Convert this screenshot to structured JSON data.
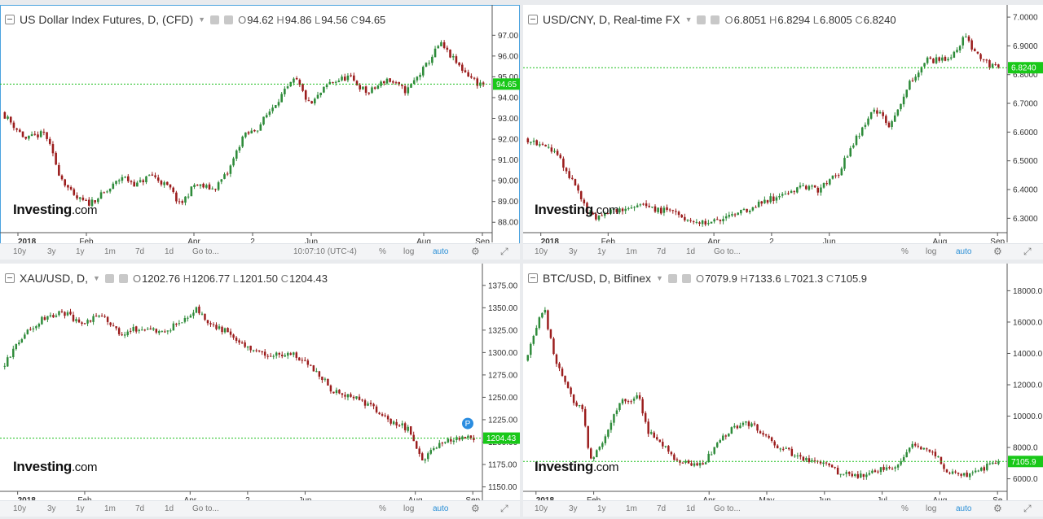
{
  "charts": [
    {
      "id": "dxy",
      "title": "US Dollar Index Futures, D, (CFD)",
      "ohlc": {
        "o": "94.62",
        "h": "94.86",
        "l": "94.56",
        "c": "94.65"
      },
      "logo": "Investing",
      "logo_suffix": ".com",
      "last_price_label": "94.65",
      "y_ticks": [
        "97.00",
        "96.00",
        "95.00",
        "94.00",
        "93.00",
        "92.00",
        "91.00",
        "90.00",
        "89.00",
        "88.00"
      ],
      "x_ticks": [
        "2018",
        "Feb",
        "Apr",
        "2",
        "Jun",
        "Aug",
        "Sep"
      ],
      "toolbar": {
        "ranges": [
          "10y",
          "3y",
          "1y",
          "1m",
          "7d",
          "1d"
        ],
        "goto": "Go to...",
        "time": "10:07:10 (UTC-4)",
        "pct": "%",
        "log": "log",
        "auto": "auto"
      }
    },
    {
      "id": "usdcny",
      "title": "USD/CNY, D, Real-time FX",
      "ohlc": {
        "o": "6.8051",
        "h": "6.8294",
        "l": "6.8005",
        "c": "6.8240"
      },
      "logo": "Investing",
      "logo_suffix": ".com",
      "last_price_label": "6.8240",
      "y_ticks": [
        "7.0000",
        "6.9000",
        "6.8000",
        "6.7000",
        "6.6000",
        "6.5000",
        "6.4000",
        "6.3000"
      ],
      "x_ticks": [
        "2018",
        "Feb",
        "Apr",
        "2",
        "Jun",
        "Aug",
        "Sep"
      ],
      "toolbar": {
        "ranges": [
          "10y",
          "3y",
          "1y",
          "1m",
          "7d",
          "1d"
        ],
        "goto": "Go to...",
        "pct": "%",
        "log": "log",
        "auto": "auto"
      }
    },
    {
      "id": "xauusd",
      "title": "XAU/USD, D,",
      "ohlc": {
        "o": "1202.76",
        "h": "1206.77",
        "l": "1201.50",
        "c": "1204.43"
      },
      "logo": "Investing",
      "logo_suffix": ".com",
      "last_price_label": "1204.43",
      "marker": "P",
      "y_ticks": [
        "1375.00",
        "1350.00",
        "1325.00",
        "1300.00",
        "1275.00",
        "1250.00",
        "1225.00",
        "1200.00",
        "1175.00",
        "1150.00"
      ],
      "x_ticks": [
        "2018",
        "Feb",
        "Apr",
        "2",
        "Jun",
        "Aug",
        "Sep"
      ],
      "toolbar": {
        "ranges": [
          "10y",
          "3y",
          "1y",
          "1m",
          "7d",
          "1d"
        ],
        "goto": "Go to...",
        "pct": "%",
        "log": "log",
        "auto": "auto"
      }
    },
    {
      "id": "btcusd",
      "title": "BTC/USD, D, Bitfinex",
      "ohlc": {
        "o": "7079.9",
        "h": "7133.6",
        "l": "7021.3",
        "c": "7105.9"
      },
      "logo": "Investing",
      "logo_suffix": ".com",
      "last_price_label": "7105.9",
      "y_ticks": [
        "18000.0",
        "16000.0",
        "14000.0",
        "12000.0",
        "10000.0",
        "8000.0",
        "6000.0"
      ],
      "x_ticks": [
        "2018",
        "Feb",
        "Apr",
        "May",
        "Jun",
        "Jul",
        "Aug",
        "Se"
      ],
      "toolbar": {
        "ranges": [
          "10y",
          "3y",
          "1y",
          "1m",
          "7d",
          "1d"
        ],
        "goto": "Go to...",
        "pct": "%",
        "log": "log",
        "auto": "auto"
      }
    }
  ],
  "chart_data": [
    {
      "type": "candlestick",
      "title": "US Dollar Index Futures, D, (CFD)",
      "ylim": [
        87.5,
        97.6
      ],
      "last": 94.65,
      "x_tick_pos": [
        0.03,
        0.17,
        0.39,
        0.51,
        0.63,
        0.86,
        0.98
      ],
      "path": [
        [
          0,
          93.3
        ],
        [
          0.05,
          92.0
        ],
        [
          0.09,
          92.3
        ],
        [
          0.12,
          90.3
        ],
        [
          0.15,
          89.2
        ],
        [
          0.18,
          88.9
        ],
        [
          0.22,
          89.5
        ],
        [
          0.25,
          90.2
        ],
        [
          0.28,
          89.8
        ],
        [
          0.31,
          90.3
        ],
        [
          0.35,
          89.6
        ],
        [
          0.37,
          88.8
        ],
        [
          0.4,
          89.8
        ],
        [
          0.44,
          89.6
        ],
        [
          0.47,
          90.4
        ],
        [
          0.5,
          92.1
        ],
        [
          0.53,
          92.5
        ],
        [
          0.57,
          93.8
        ],
        [
          0.61,
          94.9
        ],
        [
          0.64,
          93.6
        ],
        [
          0.68,
          94.7
        ],
        [
          0.72,
          95.0
        ],
        [
          0.76,
          94.2
        ],
        [
          0.8,
          94.9
        ],
        [
          0.84,
          94.3
        ],
        [
          0.88,
          95.5
        ],
        [
          0.91,
          96.6
        ],
        [
          0.95,
          95.5
        ],
        [
          0.99,
          94.65
        ]
      ]
    },
    {
      "type": "candlestick",
      "title": "USD/CNY, D, Real-time FX",
      "ylim": [
        6.25,
        7.02
      ],
      "last": 6.824,
      "x_tick_pos": [
        0.03,
        0.17,
        0.39,
        0.51,
        0.63,
        0.86,
        0.98
      ],
      "path": [
        [
          0,
          6.58
        ],
        [
          0.06,
          6.54
        ],
        [
          0.1,
          6.43
        ],
        [
          0.14,
          6.3
        ],
        [
          0.19,
          6.33
        ],
        [
          0.25,
          6.34
        ],
        [
          0.31,
          6.32
        ],
        [
          0.37,
          6.28
        ],
        [
          0.43,
          6.3
        ],
        [
          0.49,
          6.35
        ],
        [
          0.54,
          6.38
        ],
        [
          0.58,
          6.41
        ],
        [
          0.62,
          6.4
        ],
        [
          0.66,
          6.45
        ],
        [
          0.7,
          6.58
        ],
        [
          0.74,
          6.68
        ],
        [
          0.77,
          6.62
        ],
        [
          0.81,
          6.77
        ],
        [
          0.85,
          6.85
        ],
        [
          0.89,
          6.85
        ],
        [
          0.93,
          6.93
        ],
        [
          0.96,
          6.86
        ],
        [
          0.99,
          6.824
        ]
      ]
    },
    {
      "type": "candlestick",
      "title": "XAU/USD, D,",
      "ylim": [
        1145,
        1383
      ],
      "last": 1204.43,
      "x_tick_pos": [
        0.03,
        0.17,
        0.39,
        0.51,
        0.63,
        0.86,
        0.98
      ],
      "path": [
        [
          0,
          1284
        ],
        [
          0.05,
          1322
        ],
        [
          0.09,
          1340
        ],
        [
          0.13,
          1345
        ],
        [
          0.17,
          1330
        ],
        [
          0.21,
          1342
        ],
        [
          0.25,
          1322
        ],
        [
          0.3,
          1328
        ],
        [
          0.34,
          1322
        ],
        [
          0.38,
          1334
        ],
        [
          0.41,
          1348
        ],
        [
          0.45,
          1330
        ],
        [
          0.49,
          1320
        ],
        [
          0.53,
          1300
        ],
        [
          0.57,
          1298
        ],
        [
          0.61,
          1300
        ],
        [
          0.66,
          1282
        ],
        [
          0.7,
          1258
        ],
        [
          0.74,
          1252
        ],
        [
          0.78,
          1240
        ],
        [
          0.82,
          1224
        ],
        [
          0.86,
          1215
        ],
        [
          0.89,
          1178
        ],
        [
          0.93,
          1200
        ],
        [
          0.99,
          1204.43
        ]
      ]
    },
    {
      "type": "candlestick",
      "title": "BTC/USD, D, Bitfinex",
      "ylim": [
        5200,
        18800
      ],
      "last": 7105.9,
      "x_tick_pos": [
        0.02,
        0.14,
        0.38,
        0.5,
        0.62,
        0.74,
        0.86,
        0.98
      ],
      "path": [
        [
          0,
          13500
        ],
        [
          0.02,
          15500
        ],
        [
          0.04,
          17000
        ],
        [
          0.06,
          14000
        ],
        [
          0.08,
          12500
        ],
        [
          0.1,
          11000
        ],
        [
          0.12,
          10500
        ],
        [
          0.14,
          7000
        ],
        [
          0.17,
          8800
        ],
        [
          0.2,
          10800
        ],
        [
          0.24,
          11300
        ],
        [
          0.26,
          9000
        ],
        [
          0.29,
          8200
        ],
        [
          0.32,
          7200
        ],
        [
          0.35,
          6800
        ],
        [
          0.38,
          7000
        ],
        [
          0.41,
          8500
        ],
        [
          0.44,
          9200
        ],
        [
          0.48,
          9600
        ],
        [
          0.51,
          8600
        ],
        [
          0.55,
          7800
        ],
        [
          0.59,
          7300
        ],
        [
          0.63,
          7000
        ],
        [
          0.67,
          6300
        ],
        [
          0.71,
          6200
        ],
        [
          0.75,
          6700
        ],
        [
          0.78,
          6600
        ],
        [
          0.82,
          8200
        ],
        [
          0.86,
          7700
        ],
        [
          0.89,
          6600
        ],
        [
          0.93,
          6200
        ],
        [
          0.96,
          6500
        ],
        [
          0.99,
          7105.9
        ]
      ]
    }
  ],
  "colors": {
    "up": "#2e8b3a",
    "down": "#9b1d1d",
    "lastline": "#1bbf1b",
    "tag": "#19c819",
    "marker": "#2b8de0",
    "grid": "#eeeeee",
    "axis": "#222222"
  }
}
